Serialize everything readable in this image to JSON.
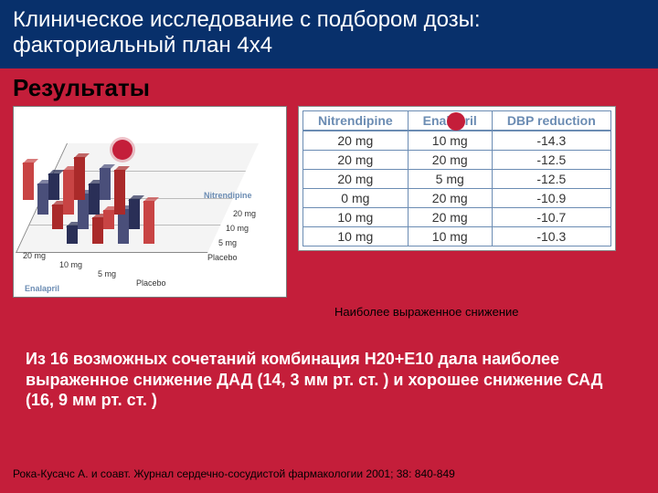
{
  "title_line1": "Клиническое исследование с подбором дозы:",
  "title_line2": "факториальный план 4х4",
  "section_heading": "Результаты",
  "chart": {
    "x_axis_label": "Enalapril",
    "y_axis_label": "Nitrendipine",
    "x_ticks": [
      "20 mg",
      "10 mg",
      "5 mg",
      "Placebo"
    ],
    "y_ticks": [
      "20 mg",
      "10 mg",
      "5 mg",
      "Placebo"
    ],
    "bar_colors": [
      "#2a2f57",
      "#aa2a2a",
      "#4a4f7a",
      "#c84444"
    ],
    "floor_bg": "#f4f4f4",
    "grid_color": "#bbbbbb",
    "label_fontsize": 9,
    "marker_color": "#c41e3a"
  },
  "table": {
    "columns": [
      "Nitrendipine",
      "Enalapril",
      "DBP reduction"
    ],
    "rows": [
      [
        "20 mg",
        "10 mg",
        "-14.3"
      ],
      [
        "20 mg",
        "20 mg",
        "-12.5"
      ],
      [
        "20 mg",
        "5 mg",
        "-12.5"
      ],
      [
        "0 mg",
        "20 mg",
        "-10.9"
      ],
      [
        "10 mg",
        "20 mg",
        "-10.7"
      ],
      [
        "10 mg",
        "10 mg",
        "-10.3"
      ]
    ],
    "header_color": "#6b8cb3",
    "border_color": "#6b8cb3"
  },
  "legend_text": "Наиболее выраженное снижение",
  "summary_text": "Из 16 возможных сочетаний комбинация  Н20+Е10 дала наиболее выраженное снижение ДАД (14, 3 мм рт. ст. )  и хорошее снижение САД (16, 9 мм рт. ст. )",
  "citation": "Рока-Кусачс А. и соавт. Журнал сердечно-сосудистой фармакологии 2001; 38: 840-849",
  "colors": {
    "slide_bg": "#c41e3a",
    "title_bg": "#08306b",
    "text_white": "#ffffff",
    "text_black": "#000000"
  }
}
